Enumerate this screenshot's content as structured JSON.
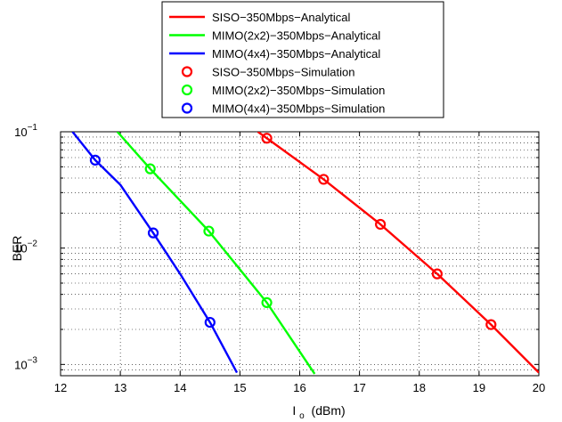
{
  "chart_data": {
    "type": "line",
    "title": "",
    "xlabel": "I",
    "xlabel_sub": "o",
    "xlabel_unit": "(dBm)",
    "ylabel": "BER",
    "xlim": [
      12,
      20
    ],
    "ylim": [
      0.0008,
      0.1
    ],
    "yscale": "log",
    "grid": true,
    "legend_position": "top-center-outside",
    "x_ticks": [
      "12",
      "13",
      "14",
      "15",
      "16",
      "17",
      "18",
      "19",
      "20"
    ],
    "y_ticks": [
      {
        "value": 0.1,
        "base": "10",
        "exp": "−1"
      },
      {
        "value": 0.01,
        "base": "10",
        "exp": "−2"
      },
      {
        "value": 0.001,
        "base": "10",
        "exp": "−3"
      }
    ],
    "series": [
      {
        "name": "SISO−350Mbps−Analytical",
        "style": "line",
        "color": "#ff0000",
        "x": [
          15.3,
          15.45,
          16.4,
          17.35,
          18.3,
          19.2,
          20.0
        ],
        "y": [
          0.1,
          0.088,
          0.039,
          0.016,
          0.006,
          0.0022,
          0.00085
        ]
      },
      {
        "name": "MIMO(2x2)−350Mbps−Analytical",
        "style": "line",
        "color": "#00ff00",
        "x": [
          12.95,
          13.5,
          14.48,
          15.45,
          16.25
        ],
        "y": [
          0.1,
          0.048,
          0.014,
          0.0034,
          0.00083
        ]
      },
      {
        "name": "MIMO(4x4)−350Mbps−Analytical",
        "style": "line",
        "color": "#0000ff",
        "x": [
          12.2,
          12.58,
          13.0,
          13.55,
          14.0,
          14.5,
          14.95
        ],
        "y": [
          0.1,
          0.057,
          0.035,
          0.0135,
          0.006,
          0.0023,
          0.00085
        ]
      },
      {
        "name": "SISO−350Mbps−Simulation",
        "style": "marker",
        "color": "#ff0000",
        "x": [
          15.45,
          16.4,
          17.35,
          18.3,
          19.2
        ],
        "y": [
          0.088,
          0.039,
          0.016,
          0.006,
          0.0022
        ]
      },
      {
        "name": "MIMO(2x2)−350Mbps−Simulation",
        "style": "marker",
        "color": "#00ff00",
        "x": [
          13.5,
          14.48,
          15.45
        ],
        "y": [
          0.048,
          0.014,
          0.0034
        ]
      },
      {
        "name": "MIMO(4x4)−350Mbps−Simulation",
        "style": "marker",
        "color": "#0000ff",
        "x": [
          12.58,
          13.55,
          14.5
        ],
        "y": [
          0.057,
          0.0135,
          0.0023
        ]
      }
    ]
  }
}
